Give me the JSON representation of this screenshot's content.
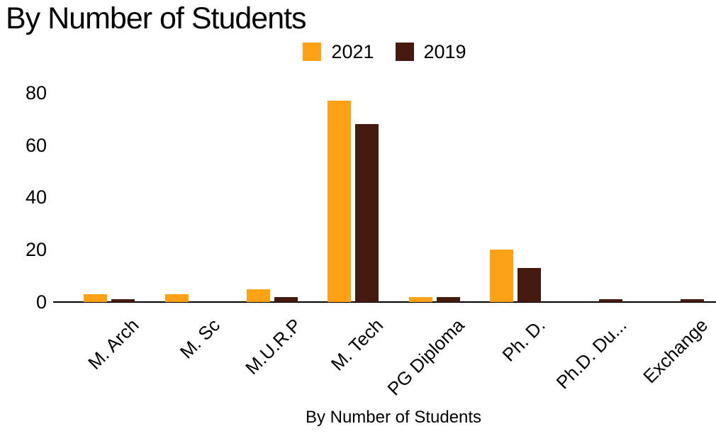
{
  "chart_data": {
    "type": "bar",
    "title": "By Number of Students",
    "xlabel": "By Number of Students",
    "ylabel": "",
    "categories": [
      "M. Arch",
      "M. Sc",
      "M.U.R.P",
      "M. Tech",
      "PG Diploma",
      "Ph. D.",
      "Ph.D. Du...",
      "Exchange"
    ],
    "series": [
      {
        "name": "2021",
        "color": "#FFA115",
        "values": [
          3,
          3,
          5,
          77,
          2,
          20,
          0,
          0
        ]
      },
      {
        "name": "2019",
        "color": "#441B0E",
        "values": [
          1,
          0,
          2,
          68,
          2,
          13,
          1,
          1
        ]
      }
    ],
    "ylim": [
      0,
      80
    ],
    "yticks": [
      0,
      20,
      40,
      60,
      80
    ],
    "grid": false,
    "legend_position": "top",
    "axis_color": "#000000",
    "text_color": "#000000",
    "background_color": "#ffffff"
  }
}
